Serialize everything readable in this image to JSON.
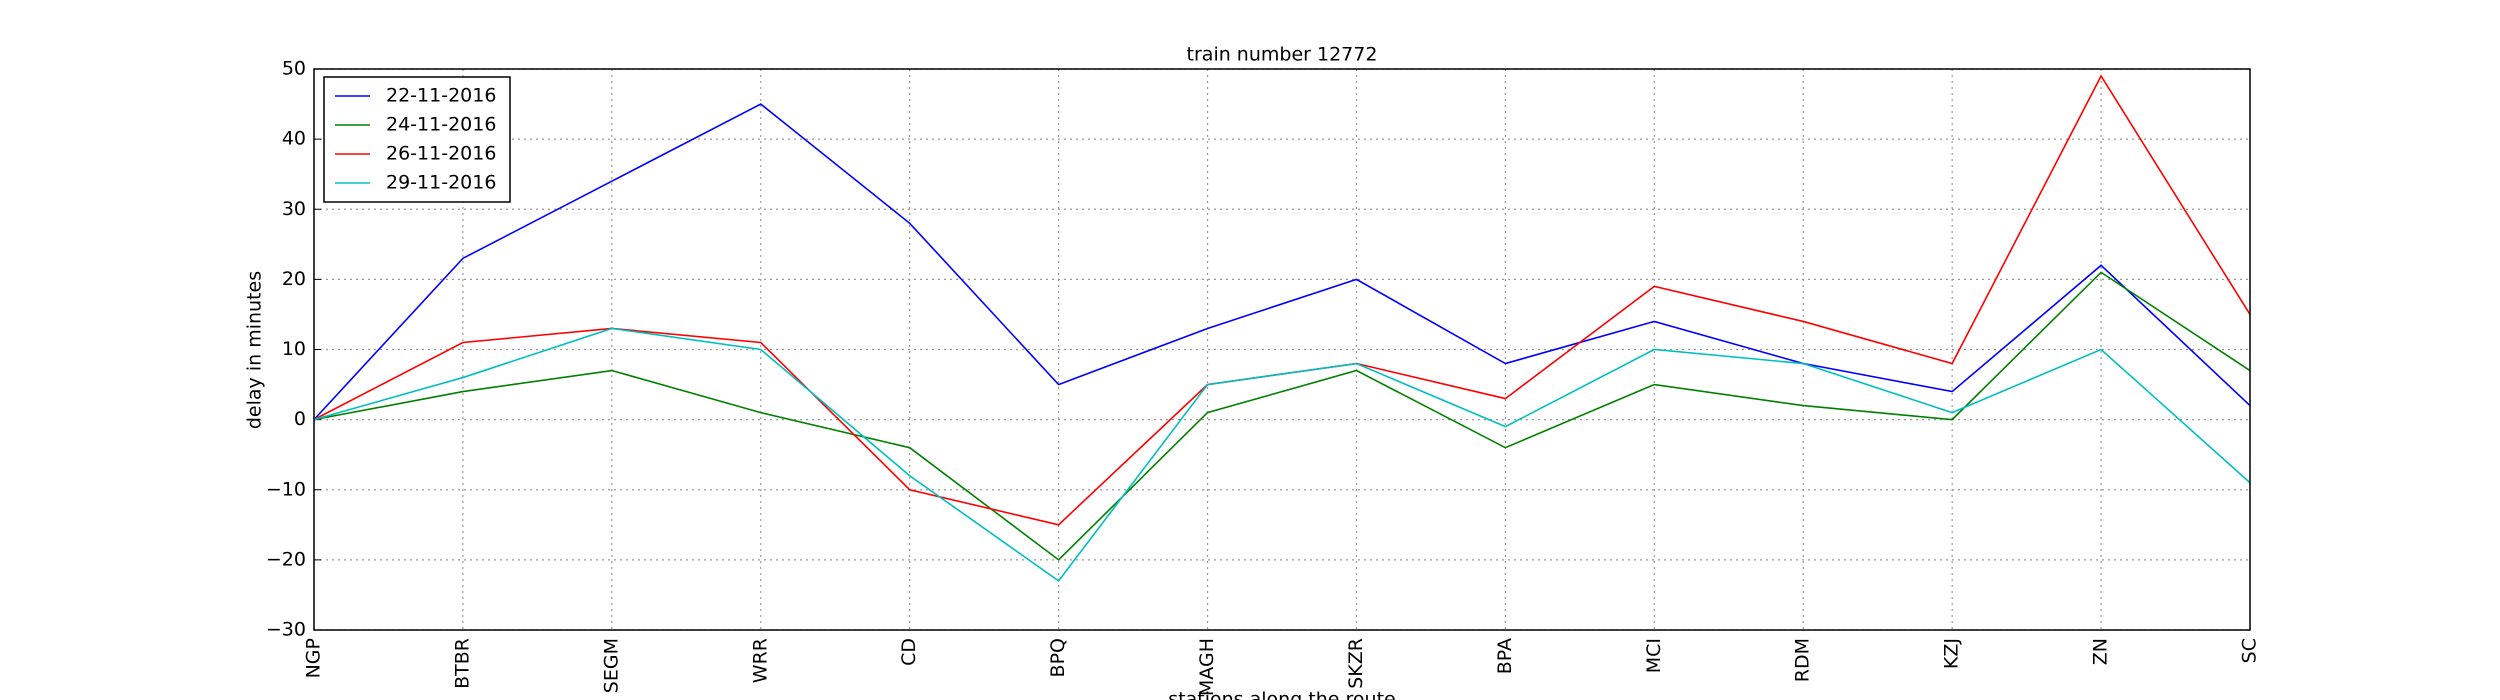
{
  "chart_data": {
    "type": "line",
    "title": "train number 12772",
    "x_label": "stations along the route",
    "y_label": "delay in minutes",
    "categories": [
      "NGP",
      "BTBR",
      "SEGM",
      "WRR",
      "CD",
      "BPQ",
      "MAGH",
      "SKZR",
      "BPA",
      "MCI",
      "RDM",
      "KZJ",
      "ZN",
      "SC"
    ],
    "series": [
      {
        "name": "22-11-2016",
        "color": "#0000ff",
        "values": [
          0,
          23,
          34,
          45,
          28,
          5,
          13,
          20,
          8,
          14,
          8,
          4,
          22,
          2
        ]
      },
      {
        "name": "24-11-2016",
        "color": "#008000",
        "values": [
          0,
          4,
          7,
          1,
          -4,
          -20,
          1,
          7,
          -4,
          5,
          2,
          0,
          21,
          7
        ]
      },
      {
        "name": "26-11-2016",
        "color": "#ff0000",
        "values": [
          0,
          11,
          13,
          11,
          -10,
          -15,
          5,
          8,
          3,
          19,
          14,
          8,
          49,
          15
        ]
      },
      {
        "name": "29-11-2016",
        "color": "#00bfbf",
        "values": [
          0,
          6,
          13,
          10,
          -8,
          -23,
          5,
          8,
          -1,
          10,
          8,
          1,
          10,
          -9
        ]
      }
    ],
    "ylim": [
      -30,
      50
    ],
    "yticks": [
      {
        "value": -30,
        "label": "−30"
      },
      {
        "value": -20,
        "label": "−20"
      },
      {
        "value": -10,
        "label": "−10"
      },
      0,
      10,
      20,
      30,
      40,
      50
    ],
    "grid": true,
    "legend": "upper-left"
  }
}
